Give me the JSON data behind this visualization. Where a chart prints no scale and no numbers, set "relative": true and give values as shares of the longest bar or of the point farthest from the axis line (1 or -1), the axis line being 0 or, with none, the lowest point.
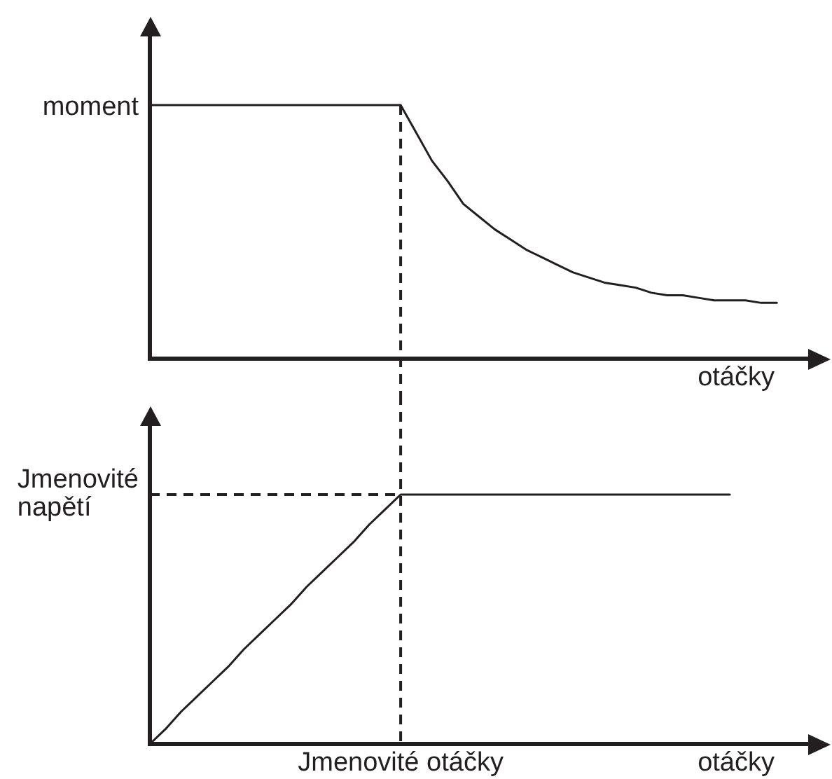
{
  "chart_data": [
    {
      "type": "line",
      "ylabel": "moment",
      "xlabel": "otáčky",
      "relative": true,
      "categories": [
        null,
        null,
        null,
        null,
        null,
        null,
        null,
        null,
        null,
        null,
        null,
        null,
        null,
        null,
        null,
        null,
        null,
        null,
        null,
        null,
        null,
        null,
        null,
        null,
        null,
        null,
        null,
        null,
        null,
        null,
        null,
        null,
        null,
        null,
        null,
        null,
        null,
        null,
        null,
        null,
        null,
        null,
        null
      ],
      "series": [
        {
          "color": "#231f20",
          "values": [
            1,
            1,
            1,
            1,
            1,
            1,
            1,
            1,
            1,
            1,
            1,
            1,
            1,
            1,
            1,
            1,
            1,
            0.89,
            0.78,
            0.7,
            0.61,
            0.56,
            0.51,
            0.47,
            0.43,
            0.4,
            0.37,
            0.34,
            0.32,
            0.3,
            0.29,
            0.28,
            0.26,
            0.25,
            0.25,
            0.24,
            0.23,
            0.23,
            0.23,
            0.22,
            0.22,
            null,
            null
          ]
        }
      ]
    },
    {
      "type": "line",
      "xlabel": "otáčky",
      "relative": true,
      "categories": [
        null,
        null,
        null,
        null,
        null,
        null,
        null,
        null,
        null,
        null,
        null,
        null,
        null,
        null,
        null,
        null,
        null,
        null,
        null,
        null,
        null,
        null,
        null,
        null,
        null,
        null,
        null,
        null,
        null,
        null,
        null,
        null,
        null,
        null,
        null,
        null,
        null,
        null,
        null,
        null,
        null,
        null,
        null
      ],
      "series": [
        {
          "color": "#231f20",
          "values": [
            0,
            0.06,
            0.13,
            0.19,
            0.25,
            0.31,
            0.38,
            0.44,
            0.5,
            0.56,
            0.63,
            0.69,
            0.75,
            0.81,
            0.88,
            0.94,
            1,
            1,
            1,
            1,
            1,
            1,
            1,
            1,
            1,
            1,
            1,
            1,
            1,
            1,
            1,
            1,
            1,
            1,
            1,
            1,
            1,
            1,
            null,
            null,
            null,
            null,
            null
          ]
        }
      ],
      "ref_lines": [
        {
          "axis": "y",
          "value": 1,
          "label": "Jmenovité napětí",
          "color": "#231f20",
          "line_style": "dashed"
        }
      ],
      "annotations": [
        "Jmenovité otáčky"
      ]
    }
  ]
}
